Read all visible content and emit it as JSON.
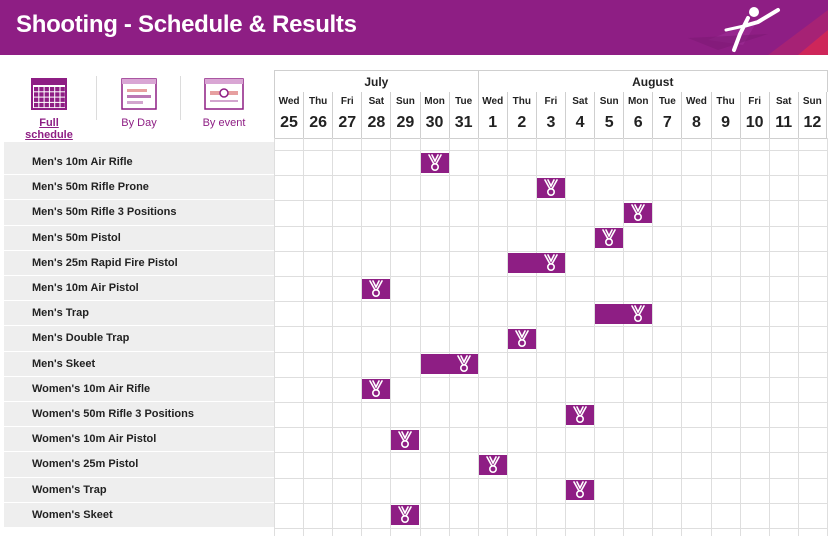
{
  "header": {
    "title": "Shooting - Schedule & Results"
  },
  "views": [
    {
      "label": "Full schedule",
      "active": true,
      "icon": "full-schedule-icon"
    },
    {
      "label": "By Day",
      "active": false,
      "icon": "by-day-icon"
    },
    {
      "label": "By event",
      "active": false,
      "icon": "by-event-icon"
    }
  ],
  "months": [
    {
      "label": "July",
      "days": 7
    },
    {
      "label": "August",
      "days": 12
    }
  ],
  "days": [
    {
      "name": "Wed",
      "date": "25"
    },
    {
      "name": "Thu",
      "date": "26"
    },
    {
      "name": "Fri",
      "date": "27"
    },
    {
      "name": "Sat",
      "date": "28"
    },
    {
      "name": "Sun",
      "date": "29"
    },
    {
      "name": "Mon",
      "date": "30"
    },
    {
      "name": "Tue",
      "date": "31"
    },
    {
      "name": "Wed",
      "date": "1"
    },
    {
      "name": "Thu",
      "date": "2"
    },
    {
      "name": "Fri",
      "date": "3"
    },
    {
      "name": "Sat",
      "date": "4"
    },
    {
      "name": "Sun",
      "date": "5"
    },
    {
      "name": "Mon",
      "date": "6"
    },
    {
      "name": "Tue",
      "date": "7"
    },
    {
      "name": "Wed",
      "date": "8"
    },
    {
      "name": "Thu",
      "date": "9"
    },
    {
      "name": "Fri",
      "date": "10"
    },
    {
      "name": "Sat",
      "date": "11"
    },
    {
      "name": "Sun",
      "date": "12"
    }
  ],
  "events": [
    {
      "name": "Men's 10m Air Rifle",
      "start": 5,
      "end": 5
    },
    {
      "name": "Men's 50m Rifle Prone",
      "start": 9,
      "end": 9
    },
    {
      "name": "Men's 50m Rifle 3 Positions",
      "start": 12,
      "end": 12
    },
    {
      "name": "Men's 50m Pistol",
      "start": 11,
      "end": 11
    },
    {
      "name": "Men's 25m Rapid Fire Pistol",
      "start": 8,
      "end": 9
    },
    {
      "name": "Men's 10m Air Pistol",
      "start": 3,
      "end": 3
    },
    {
      "name": "Men's Trap",
      "start": 11,
      "end": 12
    },
    {
      "name": "Men's Double Trap",
      "start": 8,
      "end": 8
    },
    {
      "name": "Men's Skeet",
      "start": 5,
      "end": 6
    },
    {
      "name": "Women's 10m Air Rifle",
      "start": 3,
      "end": 3
    },
    {
      "name": "Women's 50m Rifle 3 Positions",
      "start": 10,
      "end": 10
    },
    {
      "name": "Women's 10m Air Pistol",
      "start": 4,
      "end": 4
    },
    {
      "name": "Women's 25m Pistol",
      "start": 7,
      "end": 7
    },
    {
      "name": "Women's Trap",
      "start": 10,
      "end": 10
    },
    {
      "name": "Women's Skeet",
      "start": 4,
      "end": 4
    }
  ],
  "colors": {
    "brand": "#8e1e84",
    "row_label_bg": "#eeeeee",
    "grid": "#dedede"
  },
  "icons": {
    "medal": "medal-icon",
    "shooter": "shooter-pictogram-icon"
  }
}
